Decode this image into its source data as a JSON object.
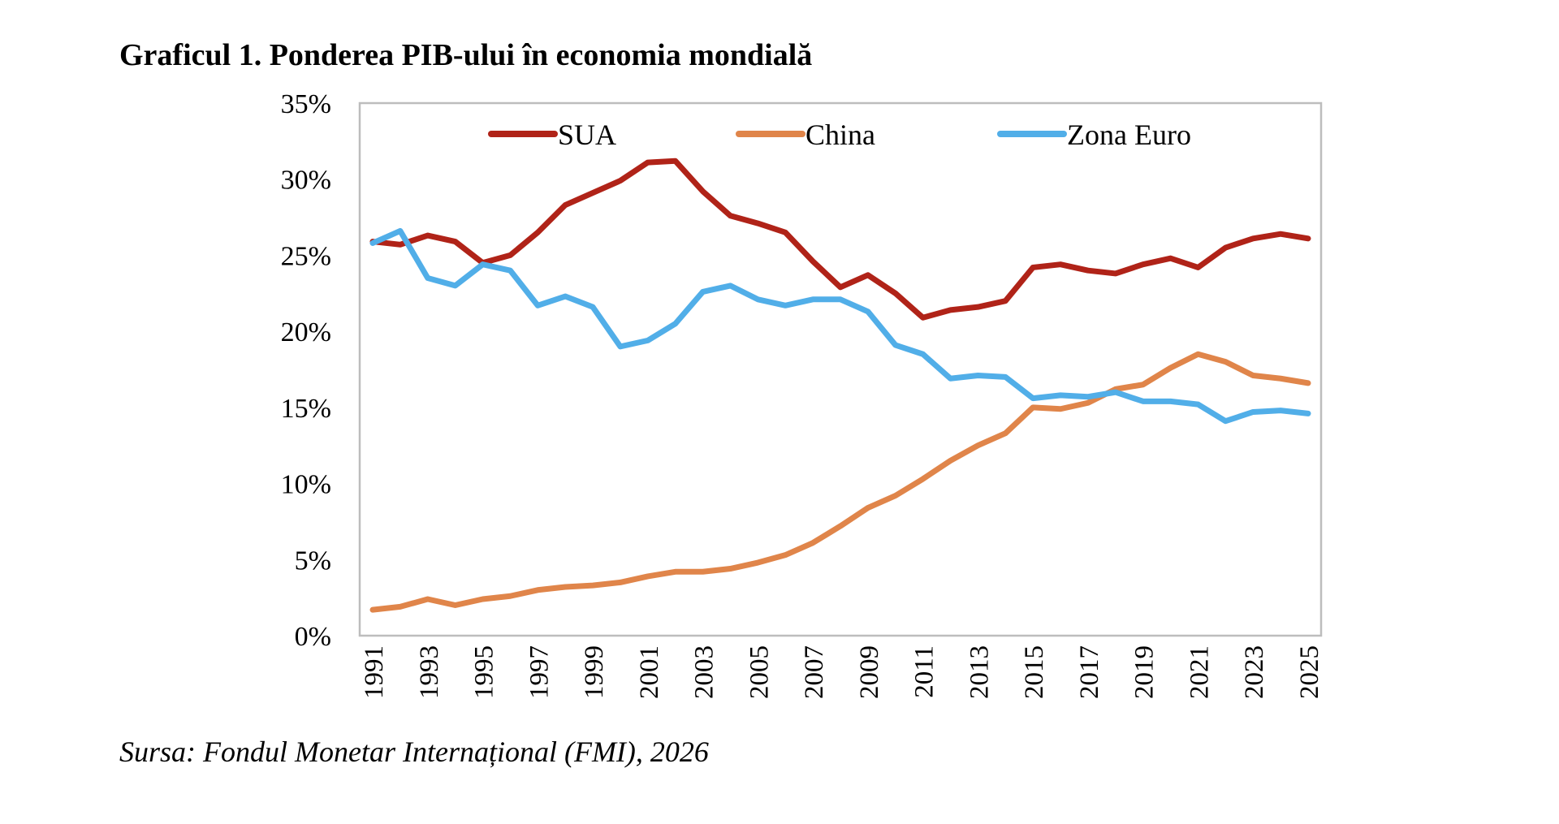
{
  "title": "Graficul 1. Ponderea PIB-ului în economia mondială",
  "source": "Sursa: Fondul Monetar Internațional (FMI), 2026",
  "chart_data": {
    "type": "line",
    "title": "Graficul 1. Ponderea PIB-ului în economia mondială",
    "xlabel": "",
    "ylabel": "",
    "ylim": [
      0,
      35
    ],
    "y_unit": "%",
    "y_ticks": [
      "0%",
      "5%",
      "10%",
      "15%",
      "20%",
      "25%",
      "30%",
      "35%"
    ],
    "x_tick_labels": [
      "1991",
      "1993",
      "1995",
      "1997",
      "1999",
      "2001",
      "2003",
      "2005",
      "2007",
      "2009",
      "2011",
      "2013",
      "2015",
      "2017",
      "2019",
      "2021",
      "2023",
      "2025"
    ],
    "grid": false,
    "legend_position": "top",
    "x": [
      1991,
      1992,
      1993,
      1994,
      1995,
      1996,
      1997,
      1998,
      1999,
      2000,
      2001,
      2002,
      2003,
      2004,
      2005,
      2006,
      2007,
      2008,
      2009,
      2010,
      2011,
      2012,
      2013,
      2014,
      2015,
      2016,
      2017,
      2018,
      2019,
      2020,
      2021,
      2022,
      2023,
      2024,
      2025
    ],
    "series": [
      {
        "name": "SUA",
        "color": "#B02318",
        "values": [
          25.9,
          25.7,
          26.3,
          25.9,
          24.5,
          25.0,
          26.5,
          28.3,
          29.1,
          29.9,
          31.1,
          31.2,
          29.2,
          27.6,
          27.1,
          26.5,
          24.6,
          22.9,
          23.7,
          22.5,
          20.9,
          21.4,
          21.6,
          22.0,
          24.2,
          24.4,
          24.0,
          23.8,
          24.4,
          24.8,
          24.2,
          25.5,
          26.1,
          26.4,
          26.1
        ]
      },
      {
        "name": "China",
        "color": "#E0854A",
        "values": [
          1.7,
          1.9,
          2.4,
          2.0,
          2.4,
          2.6,
          3.0,
          3.2,
          3.3,
          3.5,
          3.9,
          4.2,
          4.2,
          4.4,
          4.8,
          5.3,
          6.1,
          7.2,
          8.4,
          9.2,
          10.3,
          11.5,
          12.5,
          13.3,
          15.0,
          14.9,
          15.3,
          16.2,
          16.5,
          17.6,
          18.5,
          18.0,
          17.1,
          16.9,
          16.6
        ]
      },
      {
        "name": "Zona Euro",
        "color": "#51AEE8",
        "values": [
          25.8,
          26.6,
          23.5,
          23.0,
          24.4,
          24.0,
          21.7,
          22.3,
          21.6,
          19.0,
          19.4,
          20.5,
          22.6,
          23.0,
          22.1,
          21.7,
          22.1,
          22.1,
          21.3,
          19.1,
          18.5,
          16.9,
          17.1,
          17.0,
          15.6,
          15.8,
          15.7,
          16.0,
          15.4,
          15.4,
          15.2,
          14.1,
          14.7,
          14.8,
          14.6
        ]
      }
    ]
  }
}
